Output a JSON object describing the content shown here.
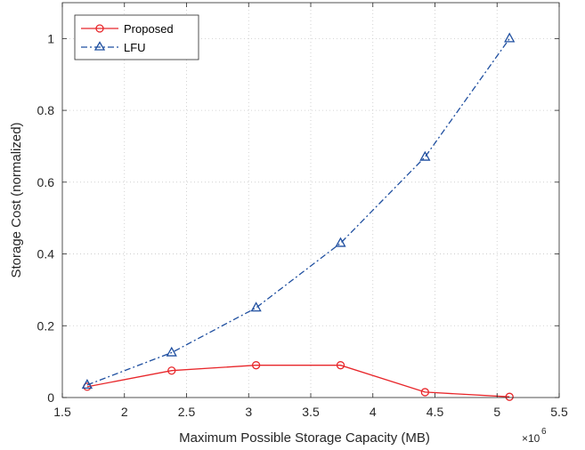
{
  "chart_data": {
    "type": "line",
    "xlabel": "Maximum Possible Storage Capacity (MB)",
    "ylabel": "Storage Cost (normalized)",
    "x_multiplier_base": "×10",
    "x_multiplier_exp": "6",
    "xlim": [
      1.5,
      5.5
    ],
    "ylim": [
      0,
      1.1
    ],
    "xticks": [
      1.5,
      2,
      2.5,
      3,
      3.5,
      4,
      4.5,
      5,
      5.5
    ],
    "xtick_labels": [
      "1.5",
      "2",
      "2.5",
      "3",
      "3.5",
      "4",
      "4.5",
      "5",
      "5.5"
    ],
    "yticks": [
      0,
      0.2,
      0.4,
      0.6,
      0.8,
      1
    ],
    "ytick_labels": [
      "0",
      "0.2",
      "0.4",
      "0.6",
      "0.8",
      "1"
    ],
    "grid": true,
    "legend_position": "top-left",
    "series": [
      {
        "name": "Proposed",
        "color": "#e8262a",
        "line_style": "solid",
        "marker": "circle",
        "x": [
          1.7,
          2.38,
          3.06,
          3.74,
          4.42,
          5.1
        ],
        "y": [
          0.03,
          0.075,
          0.09,
          0.09,
          0.015,
          0.002
        ]
      },
      {
        "name": "LFU",
        "color": "#1f4fa0",
        "line_style": "dash-dot",
        "marker": "triangle",
        "x": [
          1.7,
          2.38,
          3.06,
          3.74,
          4.42,
          5.1
        ],
        "y": [
          0.035,
          0.125,
          0.25,
          0.43,
          0.67,
          1.0
        ]
      }
    ]
  }
}
